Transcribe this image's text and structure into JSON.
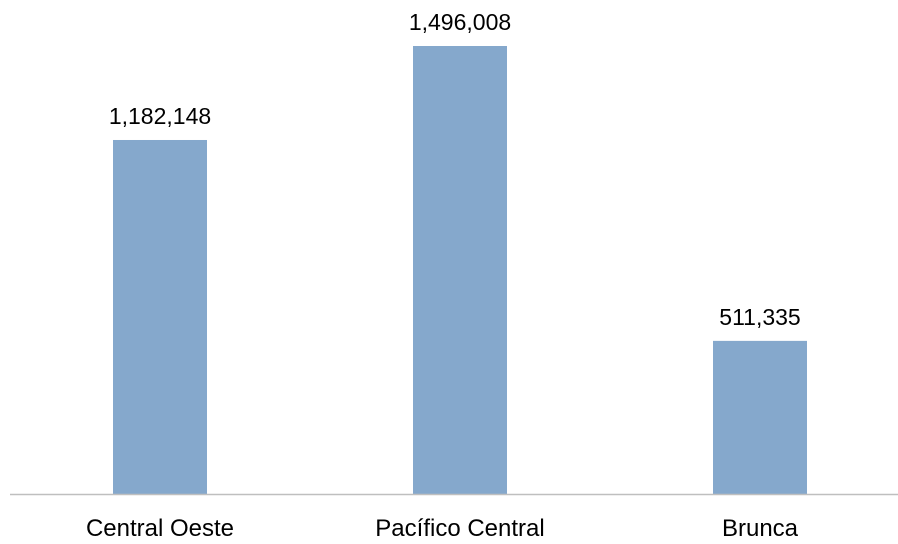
{
  "chart_data": {
    "type": "bar",
    "title": "",
    "xlabel": "",
    "ylabel": "",
    "categories": [
      "Central Oeste",
      "Pacífico Central",
      "Brunca"
    ],
    "values": [
      1182148,
      1496008,
      511335
    ],
    "data_labels": [
      "1,182,148",
      "1,496,008",
      "511,335"
    ],
    "ylim": [
      0,
      1496008
    ],
    "grid": false,
    "legend": "none",
    "colors": {
      "bar": "#85A8CC",
      "axis": "#BFBFBF",
      "text": "#000000"
    }
  }
}
